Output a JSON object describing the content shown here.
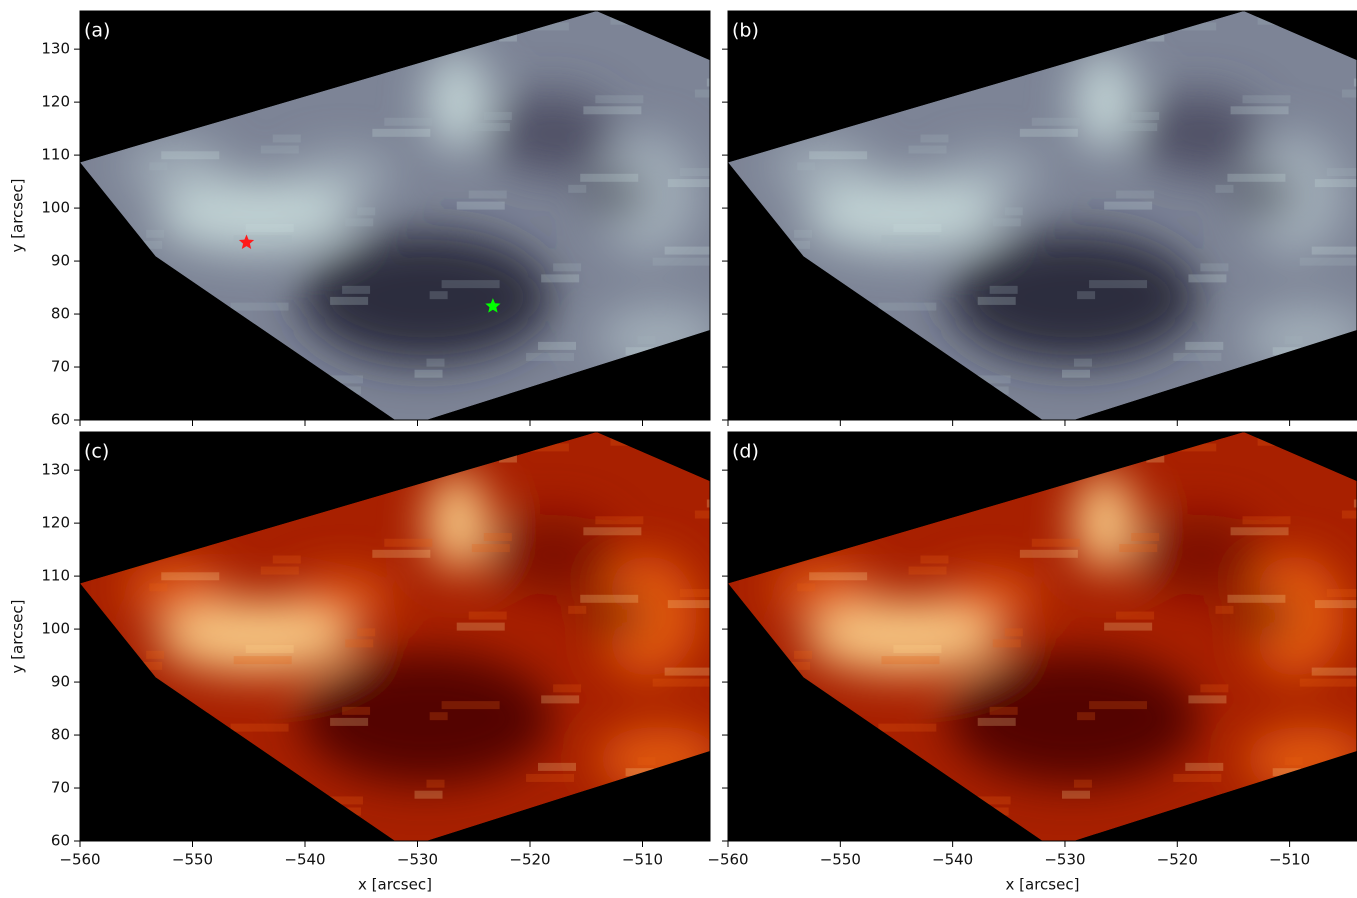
{
  "chart_data": [
    {
      "type": "image",
      "panel_label": "(a)",
      "colormap": "bone",
      "xlim": [
        -560,
        -504
      ],
      "ylim": [
        60,
        137.2
      ],
      "xticks": [
        -560,
        -550,
        -540,
        -530,
        -520,
        -510
      ],
      "show_xticklabels": false,
      "yticks": [
        60,
        70,
        80,
        90,
        100,
        110,
        120,
        130
      ],
      "show_yticklabels": true,
      "ylabel": "y [arcsec]",
      "markers": [
        {
          "x": -545.2,
          "y": 93.5,
          "color": "#ff1a1a"
        },
        {
          "x": -523.3,
          "y": 81.5,
          "color": "#00ff00"
        }
      ]
    },
    {
      "type": "image",
      "panel_label": "(b)",
      "colormap": "bone",
      "xlim": [
        -560,
        -504
      ],
      "ylim": [
        60,
        137.2
      ],
      "xticks": [
        -560,
        -550,
        -540,
        -530,
        -520,
        -510
      ],
      "show_xticklabels": false,
      "yticks": [
        60,
        70,
        80,
        90,
        100,
        110,
        120,
        130
      ],
      "show_yticklabels": false
    },
    {
      "type": "image",
      "panel_label": "(c)",
      "colormap": "gist_heat",
      "xlim": [
        -560,
        -504
      ],
      "ylim": [
        60,
        137.2
      ],
      "xticks": [
        {
          "value": -560,
          "label": "−560"
        },
        {
          "value": -550,
          "label": "−550"
        },
        {
          "value": -540,
          "label": "−540"
        },
        {
          "value": -530,
          "label": "−530"
        },
        {
          "value": -520,
          "label": "−520"
        },
        {
          "value": -510,
          "label": "−510"
        }
      ],
      "show_xticklabels": true,
      "xlabel": "x [arcsec]",
      "yticks": [
        60,
        70,
        80,
        90,
        100,
        110,
        120,
        130
      ],
      "show_yticklabels": true,
      "ylabel": "y [arcsec]"
    },
    {
      "type": "image",
      "panel_label": "(d)",
      "colormap": "gist_heat",
      "xlim": [
        -560,
        -504
      ],
      "ylim": [
        60,
        137.2
      ],
      "xticks": [
        {
          "value": -560,
          "label": "−560"
        },
        {
          "value": -550,
          "label": "−550"
        },
        {
          "value": -540,
          "label": "−540"
        },
        {
          "value": -530,
          "label": "−530"
        },
        {
          "value": -520,
          "label": "−520"
        },
        {
          "value": -510,
          "label": "−510"
        }
      ],
      "show_xticklabels": true,
      "xlabel": "x [arcsec]",
      "yticks": [
        60,
        70,
        80,
        90,
        100,
        110,
        120,
        130
      ],
      "show_yticklabels": false
    }
  ]
}
